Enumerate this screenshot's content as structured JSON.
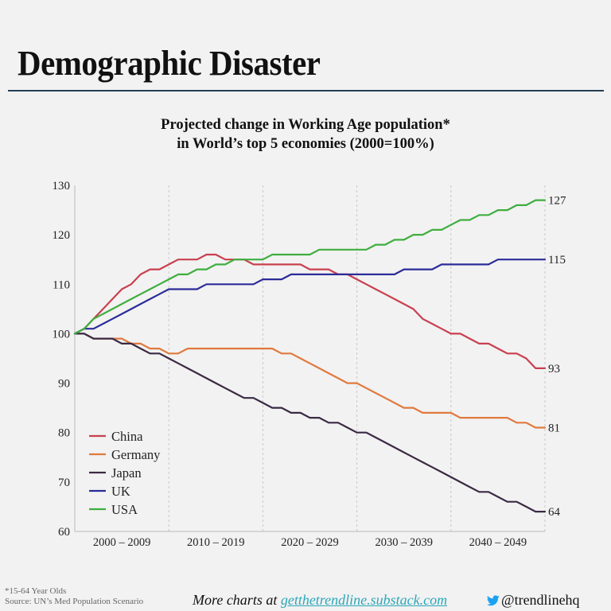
{
  "header": {
    "title": "Demographic Disaster",
    "subtitle_line1": "Projected change in Working Age population*",
    "subtitle_line2": "in World’s top 5 economies (2000=100%)"
  },
  "footer": {
    "footnote": "*15-64 Year Olds",
    "source": "Source: UN’s Med Population Scenario",
    "more_prefix": "More charts at ",
    "more_link": "getthetrendline.substack.com",
    "twitter_icon": "twitter-bird-icon",
    "twitter_handle": "@trendlinehq"
  },
  "chart_data": {
    "type": "line",
    "title": "Projected change in Working Age population* in World’s top 5 economies (2000=100%)",
    "xlabel": "",
    "ylabel": "",
    "ylim": [
      60,
      130
    ],
    "yticks": [
      60,
      70,
      80,
      90,
      100,
      110,
      120,
      130
    ],
    "xlim": [
      2000,
      2049
    ],
    "xtick_labels": [
      "2000 – 2009",
      "2010 – 2019",
      "2020 – 2029",
      "2030 – 2039",
      "2040 – 2049"
    ],
    "grid": "vertical dashed at decade boundaries",
    "legend_position": "bottom-left",
    "x": [
      2000,
      2001,
      2002,
      2003,
      2004,
      2005,
      2006,
      2007,
      2008,
      2009,
      2010,
      2011,
      2012,
      2013,
      2014,
      2015,
      2016,
      2017,
      2018,
      2019,
      2020,
      2021,
      2022,
      2023,
      2024,
      2025,
      2026,
      2027,
      2028,
      2029,
      2030,
      2031,
      2032,
      2033,
      2034,
      2035,
      2036,
      2037,
      2038,
      2039,
      2040,
      2041,
      2042,
      2043,
      2044,
      2045,
      2046,
      2047,
      2048,
      2049
    ],
    "series": [
      {
        "name": "China",
        "color": "#c9404f",
        "end_label": "93",
        "values": [
          100,
          101,
          103,
          105,
          107,
          109,
          110,
          112,
          113,
          113,
          114,
          115,
          115,
          115,
          116,
          116,
          115,
          115,
          115,
          114,
          114,
          114,
          114,
          114,
          114,
          113,
          113,
          113,
          112,
          112,
          111,
          110,
          109,
          108,
          107,
          106,
          105,
          103,
          102,
          101,
          100,
          100,
          99,
          98,
          98,
          97,
          96,
          96,
          95,
          93
        ]
      },
      {
        "name": "Germany",
        "color": "#e07a3f",
        "end_label": "81",
        "values": [
          100,
          100,
          99,
          99,
          99,
          99,
          98,
          98,
          97,
          97,
          96,
          96,
          97,
          97,
          97,
          97,
          97,
          97,
          97,
          97,
          97,
          97,
          96,
          96,
          95,
          94,
          93,
          92,
          91,
          90,
          90,
          89,
          88,
          87,
          86,
          85,
          85,
          84,
          84,
          84,
          84,
          83,
          83,
          83,
          83,
          83,
          83,
          82,
          82,
          81
        ]
      },
      {
        "name": "Japan",
        "color": "#3a2a44",
        "end_label": "64",
        "values": [
          100,
          100,
          99,
          99,
          99,
          98,
          98,
          97,
          96,
          96,
          95,
          94,
          93,
          92,
          91,
          90,
          89,
          88,
          87,
          87,
          86,
          85,
          85,
          84,
          84,
          83,
          83,
          82,
          82,
          81,
          80,
          80,
          79,
          78,
          77,
          76,
          75,
          74,
          73,
          72,
          71,
          70,
          69,
          68,
          68,
          67,
          66,
          66,
          65,
          64
        ]
      },
      {
        "name": "UK",
        "color": "#2c2c9a",
        "end_label": "115",
        "values": [
          100,
          101,
          101,
          102,
          103,
          104,
          105,
          106,
          107,
          108,
          109,
          109,
          109,
          109,
          110,
          110,
          110,
          110,
          110,
          110,
          111,
          111,
          111,
          112,
          112,
          112,
          112,
          112,
          112,
          112,
          112,
          112,
          112,
          112,
          112,
          113,
          113,
          113,
          113,
          114,
          114,
          114,
          114,
          114,
          114,
          115,
          115,
          115,
          115,
          115
        ]
      },
      {
        "name": "USA",
        "color": "#3fae3f",
        "end_label": "127",
        "values": [
          100,
          101,
          103,
          104,
          105,
          106,
          107,
          108,
          109,
          110,
          111,
          112,
          112,
          113,
          113,
          114,
          114,
          115,
          115,
          115,
          115,
          116,
          116,
          116,
          116,
          116,
          117,
          117,
          117,
          117,
          117,
          117,
          118,
          118,
          119,
          119,
          120,
          120,
          121,
          121,
          122,
          123,
          123,
          124,
          124,
          125,
          125,
          126,
          126,
          127
        ]
      }
    ]
  }
}
